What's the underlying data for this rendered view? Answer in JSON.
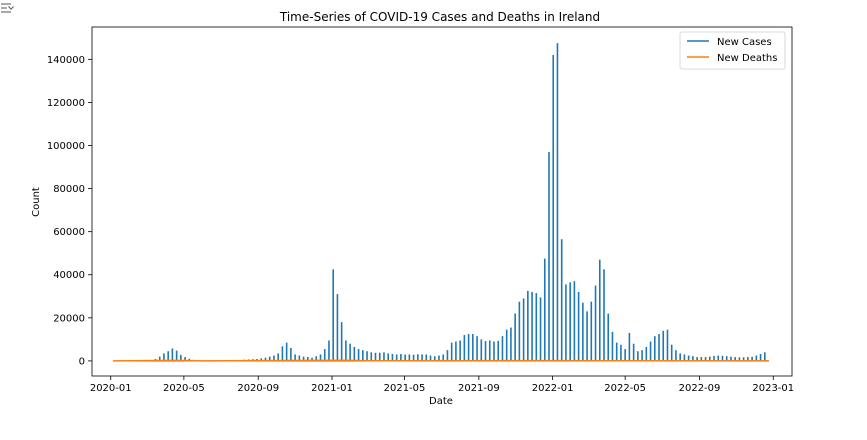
{
  "toolbar": {
    "collapse_icon": "collapse-output-icon"
  },
  "chart_data": {
    "type": "line",
    "title": "Time-Series of COVID-19 Cases and Deaths in Ireland",
    "xlabel": "Date",
    "ylabel": "Count",
    "x_range": [
      "2019-12-01",
      "2023-02-01"
    ],
    "ylim": [
      -7000,
      155000
    ],
    "x_ticks": [
      "2020-01",
      "2020-05",
      "2020-09",
      "2021-01",
      "2021-05",
      "2021-09",
      "2022-01",
      "2022-05",
      "2022-09",
      "2023-01"
    ],
    "y_ticks": [
      0,
      20000,
      40000,
      60000,
      80000,
      100000,
      120000,
      140000
    ],
    "legend": {
      "position": "top-right"
    },
    "grid": false,
    "series": [
      {
        "name": "New Cases",
        "color": "#1f77b4",
        "style": "weekly-spikes",
        "data": [
          [
            "2020-01-05",
            0
          ],
          [
            "2020-03-08",
            300
          ],
          [
            "2020-03-15",
            900
          ],
          [
            "2020-03-22",
            2000
          ],
          [
            "2020-03-29",
            3500
          ],
          [
            "2020-04-05",
            4500
          ],
          [
            "2020-04-12",
            5800
          ],
          [
            "2020-04-19",
            4800
          ],
          [
            "2020-04-26",
            2800
          ],
          [
            "2020-05-03",
            1800
          ],
          [
            "2020-05-10",
            1000
          ],
          [
            "2020-05-17",
            500
          ],
          [
            "2020-05-24",
            300
          ],
          [
            "2020-05-31",
            200
          ],
          [
            "2020-07-05",
            200
          ],
          [
            "2020-08-02",
            400
          ],
          [
            "2020-08-09",
            600
          ],
          [
            "2020-08-16",
            700
          ],
          [
            "2020-08-23",
            800
          ],
          [
            "2020-08-30",
            900
          ],
          [
            "2020-09-06",
            1200
          ],
          [
            "2020-09-13",
            1500
          ],
          [
            "2020-09-20",
            2000
          ],
          [
            "2020-09-27",
            2500
          ],
          [
            "2020-10-04",
            3500
          ],
          [
            "2020-10-11",
            6800
          ],
          [
            "2020-10-18",
            8500
          ],
          [
            "2020-10-25",
            6000
          ],
          [
            "2020-11-01",
            3000
          ],
          [
            "2020-11-08",
            2500
          ],
          [
            "2020-11-15",
            2000
          ],
          [
            "2020-11-22",
            1800
          ],
          [
            "2020-11-29",
            1500
          ],
          [
            "2020-12-06",
            2200
          ],
          [
            "2020-12-13",
            3000
          ],
          [
            "2020-12-20",
            5500
          ],
          [
            "2020-12-27",
            9500
          ],
          [
            "2021-01-03",
            42500
          ],
          [
            "2021-01-10",
            31000
          ],
          [
            "2021-01-17",
            18000
          ],
          [
            "2021-01-24",
            9500
          ],
          [
            "2021-01-31",
            8000
          ],
          [
            "2021-02-07",
            6500
          ],
          [
            "2021-02-14",
            5500
          ],
          [
            "2021-02-21",
            5000
          ],
          [
            "2021-02-28",
            4500
          ],
          [
            "2021-03-07",
            4000
          ],
          [
            "2021-03-14",
            3800
          ],
          [
            "2021-03-21",
            3800
          ],
          [
            "2021-03-28",
            4000
          ],
          [
            "2021-04-04",
            3500
          ],
          [
            "2021-04-11",
            3200
          ],
          [
            "2021-04-18",
            3000
          ],
          [
            "2021-04-25",
            3200
          ],
          [
            "2021-05-02",
            3000
          ],
          [
            "2021-05-09",
            3000
          ],
          [
            "2021-05-16",
            2900
          ],
          [
            "2021-05-23",
            3100
          ],
          [
            "2021-05-30",
            3000
          ],
          [
            "2021-06-06",
            3000
          ],
          [
            "2021-06-13",
            2500
          ],
          [
            "2021-06-20",
            2200
          ],
          [
            "2021-06-27",
            2500
          ],
          [
            "2021-07-04",
            3000
          ],
          [
            "2021-07-11",
            5000
          ],
          [
            "2021-07-18",
            8500
          ],
          [
            "2021-07-25",
            9000
          ],
          [
            "2021-08-01",
            9500
          ],
          [
            "2021-08-08",
            12000
          ],
          [
            "2021-08-15",
            12500
          ],
          [
            "2021-08-22",
            12500
          ],
          [
            "2021-08-29",
            11500
          ],
          [
            "2021-09-05",
            10000
          ],
          [
            "2021-09-12",
            9200
          ],
          [
            "2021-09-19",
            9500
          ],
          [
            "2021-09-26",
            9000
          ],
          [
            "2021-10-03",
            9300
          ],
          [
            "2021-10-10",
            11500
          ],
          [
            "2021-10-17",
            14500
          ],
          [
            "2021-10-24",
            15500
          ],
          [
            "2021-10-31",
            22000
          ],
          [
            "2021-11-07",
            27500
          ],
          [
            "2021-11-14",
            29000
          ],
          [
            "2021-11-21",
            32500
          ],
          [
            "2021-11-28",
            32000
          ],
          [
            "2021-12-05",
            31500
          ],
          [
            "2021-12-12",
            29500
          ],
          [
            "2021-12-19",
            47500
          ],
          [
            "2021-12-26",
            97000
          ],
          [
            "2022-01-02",
            142000
          ],
          [
            "2022-01-09",
            147500
          ],
          [
            "2022-01-16",
            56500
          ],
          [
            "2022-01-23",
            35500
          ],
          [
            "2022-01-30",
            36500
          ],
          [
            "2022-02-06",
            37000
          ],
          [
            "2022-02-13",
            32000
          ],
          [
            "2022-02-20",
            27000
          ],
          [
            "2022-02-27",
            23000
          ],
          [
            "2022-03-06",
            27500
          ],
          [
            "2022-03-13",
            35000
          ],
          [
            "2022-03-20",
            47000
          ],
          [
            "2022-03-27",
            42500
          ],
          [
            "2022-04-03",
            22000
          ],
          [
            "2022-04-10",
            13500
          ],
          [
            "2022-04-17",
            8500
          ],
          [
            "2022-04-24",
            7500
          ],
          [
            "2022-05-01",
            5500
          ],
          [
            "2022-05-08",
            13000
          ],
          [
            "2022-05-15",
            8000
          ],
          [
            "2022-05-22",
            4500
          ],
          [
            "2022-05-29",
            5000
          ],
          [
            "2022-06-05",
            6500
          ],
          [
            "2022-06-12",
            9000
          ],
          [
            "2022-06-19",
            11500
          ],
          [
            "2022-06-26",
            12500
          ],
          [
            "2022-07-03",
            14000
          ],
          [
            "2022-07-10",
            14500
          ],
          [
            "2022-07-17",
            7500
          ],
          [
            "2022-07-24",
            5000
          ],
          [
            "2022-07-31",
            3500
          ],
          [
            "2022-08-07",
            3000
          ],
          [
            "2022-08-14",
            2500
          ],
          [
            "2022-08-21",
            2200
          ],
          [
            "2022-08-28",
            1800
          ],
          [
            "2022-09-04",
            1800
          ],
          [
            "2022-09-11",
            1800
          ],
          [
            "2022-09-18",
            2000
          ],
          [
            "2022-09-25",
            2300
          ],
          [
            "2022-10-02",
            2500
          ],
          [
            "2022-10-09",
            2400
          ],
          [
            "2022-10-16",
            2200
          ],
          [
            "2022-10-23",
            2000
          ],
          [
            "2022-10-30",
            1800
          ],
          [
            "2022-11-06",
            1700
          ],
          [
            "2022-11-13",
            1700
          ],
          [
            "2022-11-20",
            1800
          ],
          [
            "2022-11-27",
            1900
          ],
          [
            "2022-12-04",
            2500
          ],
          [
            "2022-12-11",
            3200
          ],
          [
            "2022-12-18",
            4000
          ],
          [
            "2022-12-25",
            0
          ]
        ]
      },
      {
        "name": "New Deaths",
        "color": "#ff7f0e",
        "style": "line",
        "data": [
          [
            "2020-01-05",
            0
          ],
          [
            "2020-04-12",
            250
          ],
          [
            "2020-06-01",
            20
          ],
          [
            "2021-01-24",
            350
          ],
          [
            "2021-03-01",
            80
          ],
          [
            "2022-01-16",
            150
          ],
          [
            "2022-04-01",
            100
          ],
          [
            "2022-12-25",
            20
          ]
        ]
      }
    ]
  }
}
